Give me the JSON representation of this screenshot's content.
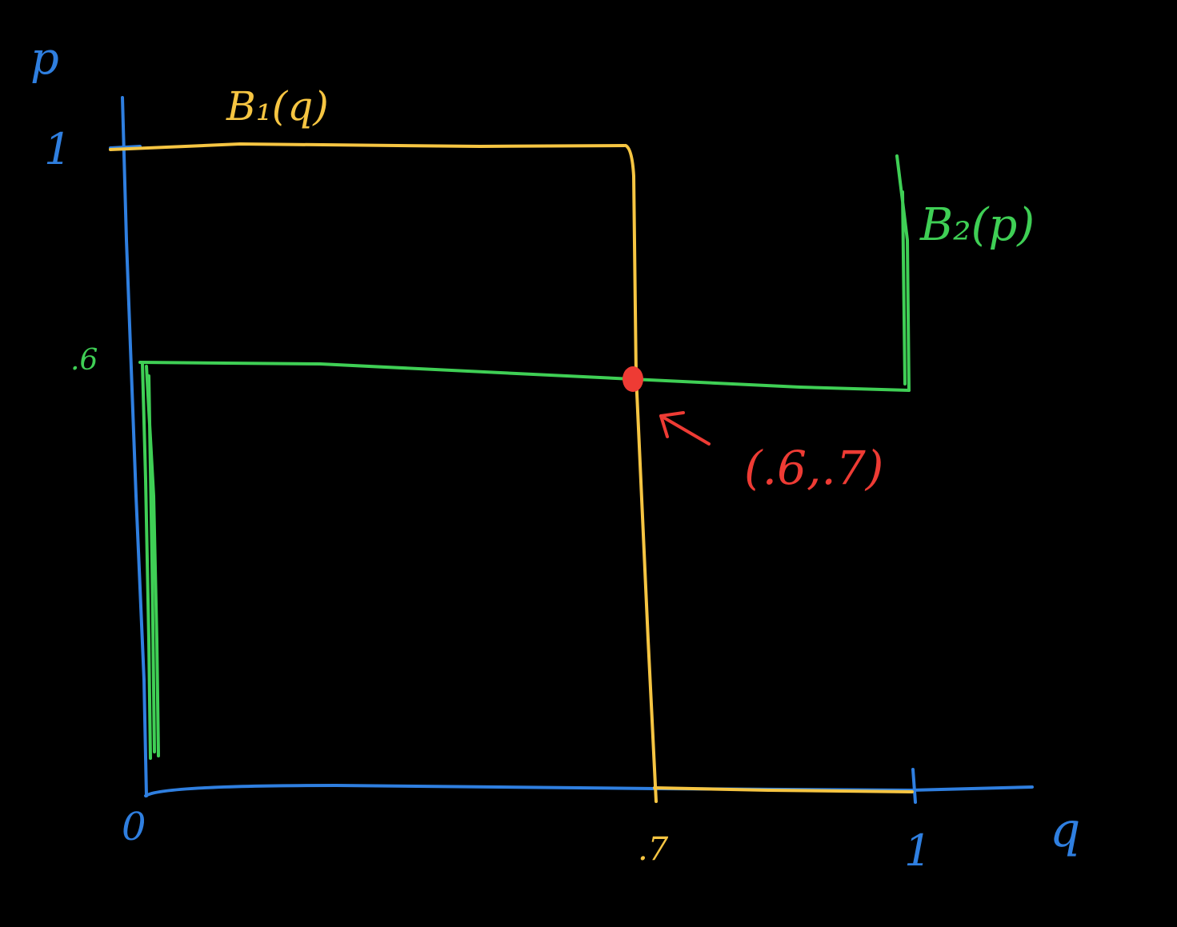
{
  "colors": {
    "background": "#000000",
    "axes": "#2f7fe0",
    "b1_curve": "#f6c542",
    "b2_curve": "#3fcf55",
    "equilibrium": "#ee3b34"
  },
  "axes": {
    "y_label": "p",
    "x_label": "q",
    "origin_label": "0",
    "y_tick_top": "1",
    "x_tick_right": "1",
    "y_tick_mid": ".6",
    "x_tick_mid": ".7"
  },
  "curves": {
    "b1_label": "B₁(q)",
    "b2_label": "B₂(p)"
  },
  "equilibrium": {
    "label": "(.6,.7)",
    "p": 0.6,
    "q": 0.7
  }
}
